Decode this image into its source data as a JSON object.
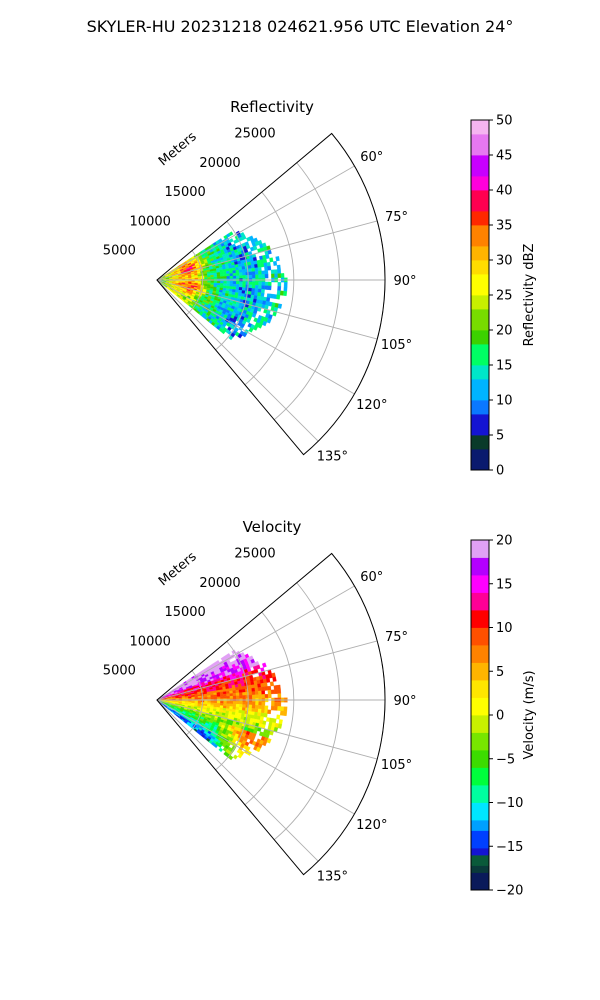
{
  "figure": {
    "title": "SKYLER-HU  20231218  024621.956 UTC Elevation 24°"
  },
  "chart_data": [
    {
      "type": "heatmap",
      "projection": "polar-sector",
      "title": "Reflectivity",
      "radial_label": "Meters",
      "r_ticks": [
        5000,
        10000,
        15000,
        20000,
        25000
      ],
      "r_tick_labels": [
        "5000",
        "10000",
        "15000",
        "20000",
        "25000"
      ],
      "rlim": [
        0,
        25000
      ],
      "theta_ticks": [
        60,
        75,
        90,
        105,
        120,
        135
      ],
      "theta_tick_labels": [
        "60°",
        "75°",
        "90°",
        "105°",
        "120°",
        "135°"
      ],
      "theta_range_deg": [
        50,
        140
      ],
      "grid": true,
      "colorbar": {
        "label": "Reflectivity dBZ",
        "min": 0,
        "max": 50,
        "ticks": [
          0,
          5,
          10,
          15,
          20,
          25,
          30,
          35,
          40,
          45,
          50
        ],
        "tick_labels": [
          "0",
          "5",
          "10",
          "15",
          "20",
          "25",
          "30",
          "35",
          "40",
          "45",
          "50"
        ]
      },
      "data_extent": {
        "r_max": 14000,
        "theta_range_deg": [
          57,
          128
        ]
      }
    },
    {
      "type": "heatmap",
      "projection": "polar-sector",
      "title": "Velocity",
      "radial_label": "Meters",
      "r_ticks": [
        5000,
        10000,
        15000,
        20000,
        25000
      ],
      "r_tick_labels": [
        "5000",
        "10000",
        "15000",
        "20000",
        "25000"
      ],
      "rlim": [
        0,
        25000
      ],
      "theta_ticks": [
        60,
        75,
        90,
        105,
        120,
        135
      ],
      "theta_tick_labels": [
        "60°",
        "75°",
        "90°",
        "105°",
        "120°",
        "135°"
      ],
      "theta_range_deg": [
        50,
        140
      ],
      "grid": true,
      "colorbar": {
        "label": "Velocity (m/s)",
        "min": -20,
        "max": 20,
        "ticks": [
          -20,
          -15,
          -10,
          -5,
          0,
          5,
          10,
          15,
          20
        ],
        "tick_labels": [
          "−20",
          "−15",
          "−10",
          "−5",
          "0",
          "5",
          "10",
          "15",
          "20"
        ]
      },
      "data_extent": {
        "r_max": 14000,
        "theta_range_deg": [
          57,
          128
        ]
      }
    }
  ]
}
